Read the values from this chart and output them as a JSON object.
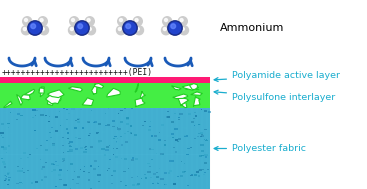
{
  "fig_width": 3.67,
  "fig_height": 1.89,
  "dpi": 100,
  "bg_color": "#ffffff",
  "ammonium_label": "Ammonium",
  "pei_text": "++++++++++++++++++++++++(PEI)",
  "polyamide_color": "#ff1a75",
  "polysulfone_color_bg": "#44ee44",
  "polyester_color_bg": "#4ab8d8",
  "label_color": "#1aadce",
  "label_fontsize": 6.8,
  "polyamide_label": "Polyamide active layer",
  "polysulfone_label": "Polysulfone interlayer",
  "polyester_label": "Polyester fabric",
  "molecule_color_N": "#1a2e8a",
  "molecule_color_H": "#d5d5d5",
  "plus_color": "#111111",
  "arrow_curve_color": "#1a5ab8"
}
